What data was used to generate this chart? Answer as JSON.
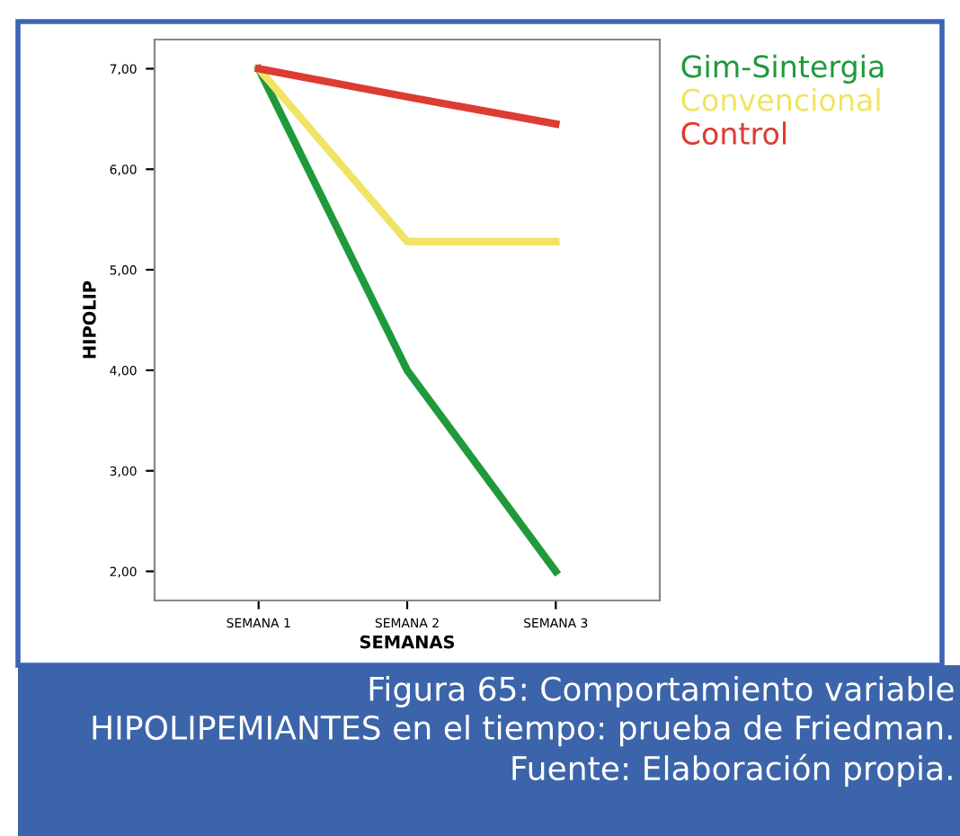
{
  "chart_data": {
    "type": "line",
    "xlabel": "SEMANAS",
    "ylabel": "HIPOLIP",
    "categories": [
      "SEMANA 1",
      "SEMANA 2",
      "SEMANA 3"
    ],
    "series": [
      {
        "name": "Gim-Sintergia",
        "color": "#1e9a3c",
        "values": [
          7.0,
          4.0,
          2.0
        ]
      },
      {
        "name": "Convencional",
        "color": "#f0e464",
        "values": [
          7.0,
          5.28,
          5.28
        ]
      },
      {
        "name": "Control",
        "color": "#dc3c32",
        "values": [
          7.0,
          6.72,
          6.45
        ]
      }
    ],
    "ylim": [
      1.71,
      7.29
    ],
    "yticks": [
      {
        "value": 2,
        "label": "2,00"
      },
      {
        "value": 3,
        "label": "3,00"
      },
      {
        "value": 4,
        "label": "4,00"
      },
      {
        "value": 5,
        "label": "5,00"
      },
      {
        "value": 6,
        "label": "6,00"
      },
      {
        "value": 7,
        "label": "7,00"
      }
    ],
    "grid": false,
    "legend": "top right",
    "marker": "none",
    "line_style": "solid",
    "annotations": [
      "Figura 65: Comportamiento variable HIPOLIPEMIANTES en el tiempo: prueba de Friedman. Fuente: Elaboración propia."
    ]
  }
}
